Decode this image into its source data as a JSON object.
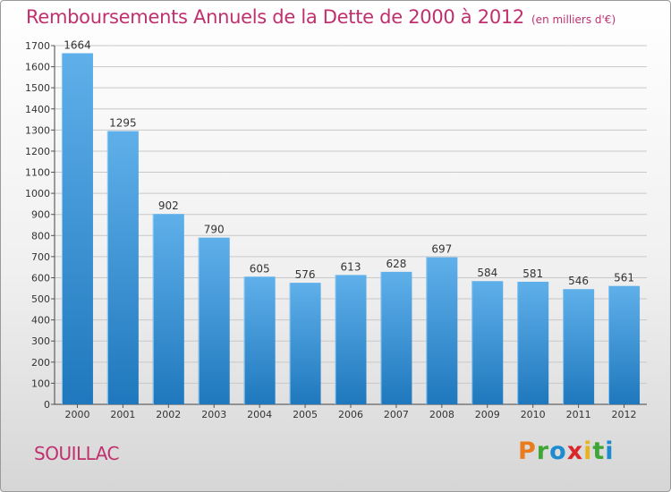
{
  "header": {
    "title": "Remboursements Annuels de la Dette de 2000 à 2012",
    "unit": "(en milliers d'€)"
  },
  "footer": {
    "commune": "SOUILLAC",
    "brand": "Proxiti",
    "brand_letters": [
      {
        "ch": "P",
        "color": "#e87c1e"
      },
      {
        "ch": "r",
        "color": "#3fa535"
      },
      {
        "ch": "o",
        "color": "#1c8bcf"
      },
      {
        "ch": "x",
        "color": "#d9262b"
      },
      {
        "ch": "i",
        "color": "#e8b41e"
      },
      {
        "ch": "t",
        "color": "#3fa535"
      },
      {
        "ch": "i",
        "color": "#1c8bcf"
      }
    ]
  },
  "colors": {
    "bar_top": "#5fb0ea",
    "bar_bottom": "#1f78bd",
    "title": "#c0306e"
  },
  "chart_data": {
    "type": "bar",
    "title": "Remboursements Annuels de la Dette de 2000 à 2012",
    "subtitle": "(en milliers d'€)",
    "categories": [
      "2000",
      "2001",
      "2002",
      "2003",
      "2004",
      "2005",
      "2006",
      "2007",
      "2008",
      "2009",
      "2010",
      "2011",
      "2012"
    ],
    "values": [
      1664,
      1295,
      902,
      790,
      605,
      576,
      613,
      628,
      697,
      584,
      581,
      546,
      561
    ],
    "ylim": [
      0,
      1700
    ],
    "yticks": [
      0,
      100,
      200,
      300,
      400,
      500,
      600,
      700,
      800,
      900,
      1000,
      1100,
      1200,
      1300,
      1400,
      1500,
      1600,
      1700
    ],
    "grid": true,
    "legend": "none"
  }
}
